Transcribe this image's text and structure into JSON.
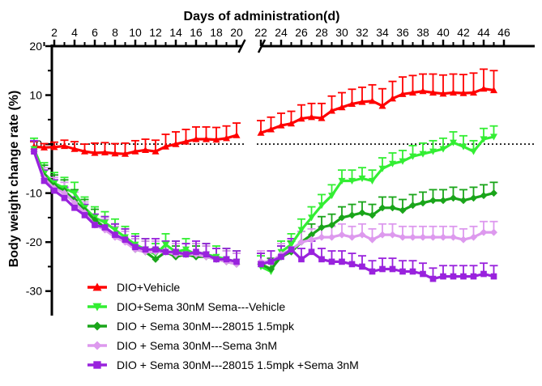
{
  "chart_data": {
    "type": "line",
    "title": "",
    "xlabel": "Days of administration(d)",
    "ylabel": "Body weight change rate (%)",
    "ylim": [
      -35,
      20
    ],
    "yticks": [
      20,
      10,
      0,
      -10,
      -20,
      -30
    ],
    "xticks": [
      2,
      4,
      6,
      8,
      10,
      12,
      14,
      16,
      18,
      20,
      22,
      24,
      26,
      28,
      30,
      32,
      34,
      36,
      38,
      40,
      42,
      44,
      46
    ],
    "x_axis_break": [
      21,
      21.6
    ],
    "reference_line": 0,
    "legend_position": "bottom-left",
    "series": [
      {
        "name": "DIO+Vehicle",
        "color": "#ff0000",
        "marker": "triangle-up",
        "x": [
          0,
          1,
          2,
          3,
          4,
          5,
          6,
          7,
          8,
          9,
          10,
          11,
          12,
          13,
          14,
          15,
          16,
          17,
          18,
          19,
          20,
          22,
          23,
          24,
          25,
          26,
          27,
          28,
          29,
          30,
          31,
          32,
          33,
          34,
          35,
          36,
          37,
          38,
          39,
          40,
          41,
          42,
          43,
          44,
          45
        ],
        "values": [
          -0.5,
          -0.7,
          -0.6,
          -0.4,
          -1.0,
          -1.5,
          -1.8,
          -1.7,
          -1.9,
          -2.0,
          -1.5,
          -1.2,
          -1.5,
          -0.5,
          0,
          0.5,
          1.0,
          1.0,
          0.9,
          1.2,
          1.8,
          2.3,
          3.0,
          3.8,
          4.2,
          5.2,
          5.5,
          5.3,
          6.8,
          7.5,
          8.2,
          8.6,
          8.8,
          7.8,
          9.3,
          10.2,
          10.5,
          10.8,
          10.5,
          10.3,
          10.5,
          10.4,
          10.5,
          11.3,
          11.0
        ],
        "errors": [
          1.0,
          0.8,
          1.0,
          1.2,
          1.5,
          1.5,
          2.0,
          2.0,
          2.0,
          2.2,
          2.2,
          2.2,
          2.3,
          2.5,
          2.5,
          2.5,
          2.5,
          2.5,
          2.5,
          2.5,
          2.5,
          2.5,
          2.5,
          2.5,
          2.5,
          2.8,
          2.8,
          3.0,
          3.0,
          3.0,
          3.0,
          3.0,
          3.3,
          3.5,
          3.5,
          3.5,
          3.5,
          3.5,
          3.8,
          3.8,
          3.8,
          3.8,
          4.0,
          4.0,
          4.0
        ]
      },
      {
        "name": "DIO+Sema 30nM Sema---Vehicle",
        "color": "#33ee33",
        "marker": "triangle-down",
        "x": [
          0,
          1,
          2,
          3,
          4,
          5,
          6,
          7,
          8,
          9,
          10,
          11,
          12,
          13,
          14,
          15,
          16,
          17,
          18,
          19,
          20,
          22,
          23,
          24,
          25,
          26,
          27,
          28,
          29,
          30,
          31,
          32,
          33,
          34,
          35,
          36,
          37,
          38,
          39,
          40,
          41,
          42,
          43,
          44,
          45
        ],
        "values": [
          -1.0,
          -6.0,
          -8.0,
          -9.0,
          -10.0,
          -13.0,
          -15.0,
          -16.0,
          -17.5,
          -19.0,
          -20.5,
          -21.5,
          -22.5,
          -20.5,
          -22.0,
          -21.5,
          -22.5,
          -22.5,
          -23.0,
          -23.5,
          -24.0,
          -25.0,
          -26.0,
          -22.0,
          -20.5,
          -17.5,
          -15.0,
          -12.5,
          -10.5,
          -7.5,
          -7.5,
          -7.0,
          -7.5,
          -5.0,
          -4.0,
          -3.5,
          -2.5,
          -2.0,
          -1.5,
          -1.0,
          0.3,
          -0.5,
          -1.5,
          1.0,
          1.5
        ]
      },
      {
        "name": "DIO + Sema 30nM---28015 1.5mpk",
        "color": "#1aa51a",
        "marker": "diamond",
        "x": [
          0,
          1,
          2,
          3,
          4,
          5,
          6,
          7,
          8,
          9,
          10,
          11,
          12,
          13,
          14,
          15,
          16,
          17,
          18,
          19,
          20,
          22,
          23,
          24,
          25,
          26,
          27,
          28,
          29,
          30,
          31,
          32,
          33,
          34,
          35,
          36,
          37,
          38,
          39,
          40,
          41,
          42,
          43,
          44,
          45
        ],
        "values": [
          -1.5,
          -6.5,
          -8.5,
          -9.5,
          -11.5,
          -13.5,
          -15.5,
          -17.0,
          -18.5,
          -19.5,
          -21.5,
          -22.0,
          -23.5,
          -22.0,
          -23.0,
          -22.5,
          -23.0,
          -23.0,
          -23.5,
          -24.0,
          -24.5,
          -24.5,
          -25.5,
          -23.0,
          -22.0,
          -20.0,
          -18.5,
          -17.0,
          -16.5,
          -15.0,
          -14.5,
          -14.0,
          -14.5,
          -13.0,
          -13.0,
          -13.5,
          -12.5,
          -12.0,
          -11.5,
          -11.5,
          -11.0,
          -11.5,
          -11.0,
          -10.5,
          -10.0
        ]
      },
      {
        "name": "DIO + Sema 30nM---Sema 3nM",
        "color": "#dd99ee",
        "marker": "diamond",
        "x": [
          0,
          1,
          2,
          3,
          4,
          5,
          6,
          7,
          8,
          9,
          10,
          11,
          12,
          13,
          14,
          15,
          16,
          17,
          18,
          19,
          20,
          22,
          23,
          24,
          25,
          26,
          27,
          28,
          29,
          30,
          31,
          32,
          33,
          34,
          35,
          36,
          37,
          38,
          39,
          40,
          41,
          42,
          43,
          44,
          45
        ],
        "values": [
          -1.5,
          -7.0,
          -9.0,
          -10.0,
          -12.0,
          -14.0,
          -16.5,
          -17.5,
          -19.0,
          -20.0,
          -21.5,
          -22.0,
          -22.0,
          -22.0,
          -22.5,
          -22.5,
          -22.5,
          -23.0,
          -23.5,
          -24.0,
          -24.5,
          -24.0,
          -24.0,
          -22.5,
          -21.5,
          -20.0,
          -19.5,
          -19.0,
          -19.0,
          -18.5,
          -19.0,
          -18.5,
          -19.5,
          -18.5,
          -18.5,
          -19.0,
          -19.0,
          -19.0,
          -19.0,
          -19.0,
          -19.0,
          -19.5,
          -19.0,
          -18.0,
          -18.0
        ]
      },
      {
        "name": "DIO + Sema 30nM---28015 1.5mpk +Sema 3nM",
        "color": "#9922dd",
        "marker": "square",
        "x": [
          0,
          1,
          2,
          3,
          4,
          5,
          6,
          7,
          8,
          9,
          10,
          11,
          12,
          13,
          14,
          15,
          16,
          17,
          18,
          19,
          20,
          22,
          23,
          24,
          25,
          26,
          27,
          28,
          29,
          30,
          31,
          32,
          33,
          34,
          35,
          36,
          37,
          38,
          39,
          40,
          41,
          42,
          43,
          44,
          45
        ],
        "values": [
          -1.5,
          -7.5,
          -9.5,
          -11.0,
          -13.0,
          -14.5,
          -16.5,
          -17.0,
          -18.5,
          -19.5,
          -21.0,
          -21.5,
          -21.5,
          -22.0,
          -22.0,
          -22.5,
          -22.0,
          -22.5,
          -23.5,
          -23.5,
          -24.0,
          -24.5,
          -24.0,
          -23.0,
          -21.5,
          -23.5,
          -22.0,
          -23.5,
          -24.0,
          -24.0,
          -24.5,
          -25.0,
          -26.0,
          -25.5,
          -25.5,
          -26.0,
          -26.0,
          -26.5,
          -27.5,
          -27.0,
          -27.0,
          -27.0,
          -27.0,
          -26.5,
          -27.0
        ]
      }
    ]
  }
}
